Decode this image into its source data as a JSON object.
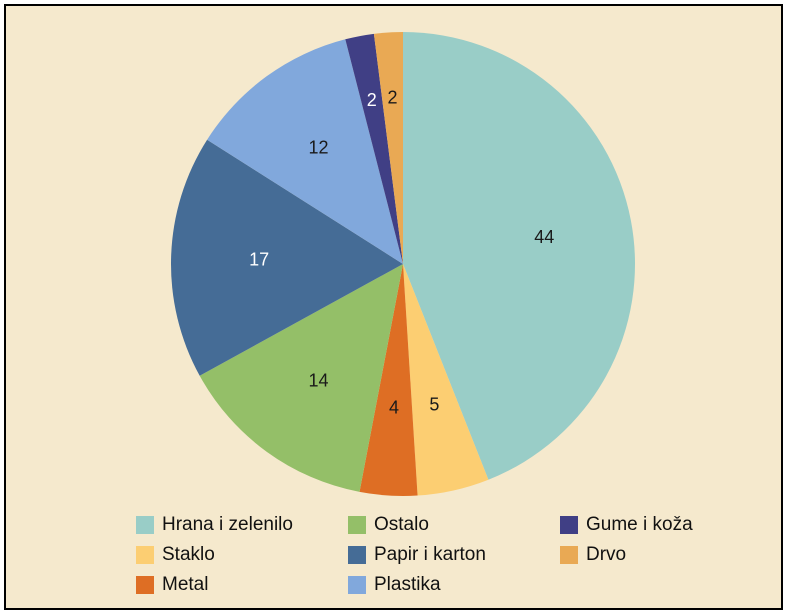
{
  "chart_data": {
    "type": "pie",
    "start_angle_deg": 0,
    "direction": "clockwise",
    "slices": [
      {
        "label": "Hrana i zelenilo",
        "value": 44,
        "color": "#99cdc7"
      },
      {
        "label": "Staklo",
        "value": 5,
        "color": "#fcce72"
      },
      {
        "label": "Metal",
        "value": 4,
        "color": "#de6e24"
      },
      {
        "label": "Ostalo",
        "value": 14,
        "color": "#94bf68"
      },
      {
        "label": "Papir i karton",
        "value": 17,
        "color": "#456c96"
      },
      {
        "label": "Plastika",
        "value": 12,
        "color": "#81a8dc"
      },
      {
        "label": "Gume i koža",
        "value": 2,
        "color": "#403f85"
      },
      {
        "label": "Drvo",
        "value": 2,
        "color": "#e9a954"
      }
    ],
    "legend": {
      "position": "bottom",
      "order": [
        "Hrana i zelenilo",
        "Ostalo",
        "Gume i koža",
        "Staklo",
        "Papir i karton",
        "Drvo",
        "Metal",
        "Plastika"
      ]
    }
  }
}
